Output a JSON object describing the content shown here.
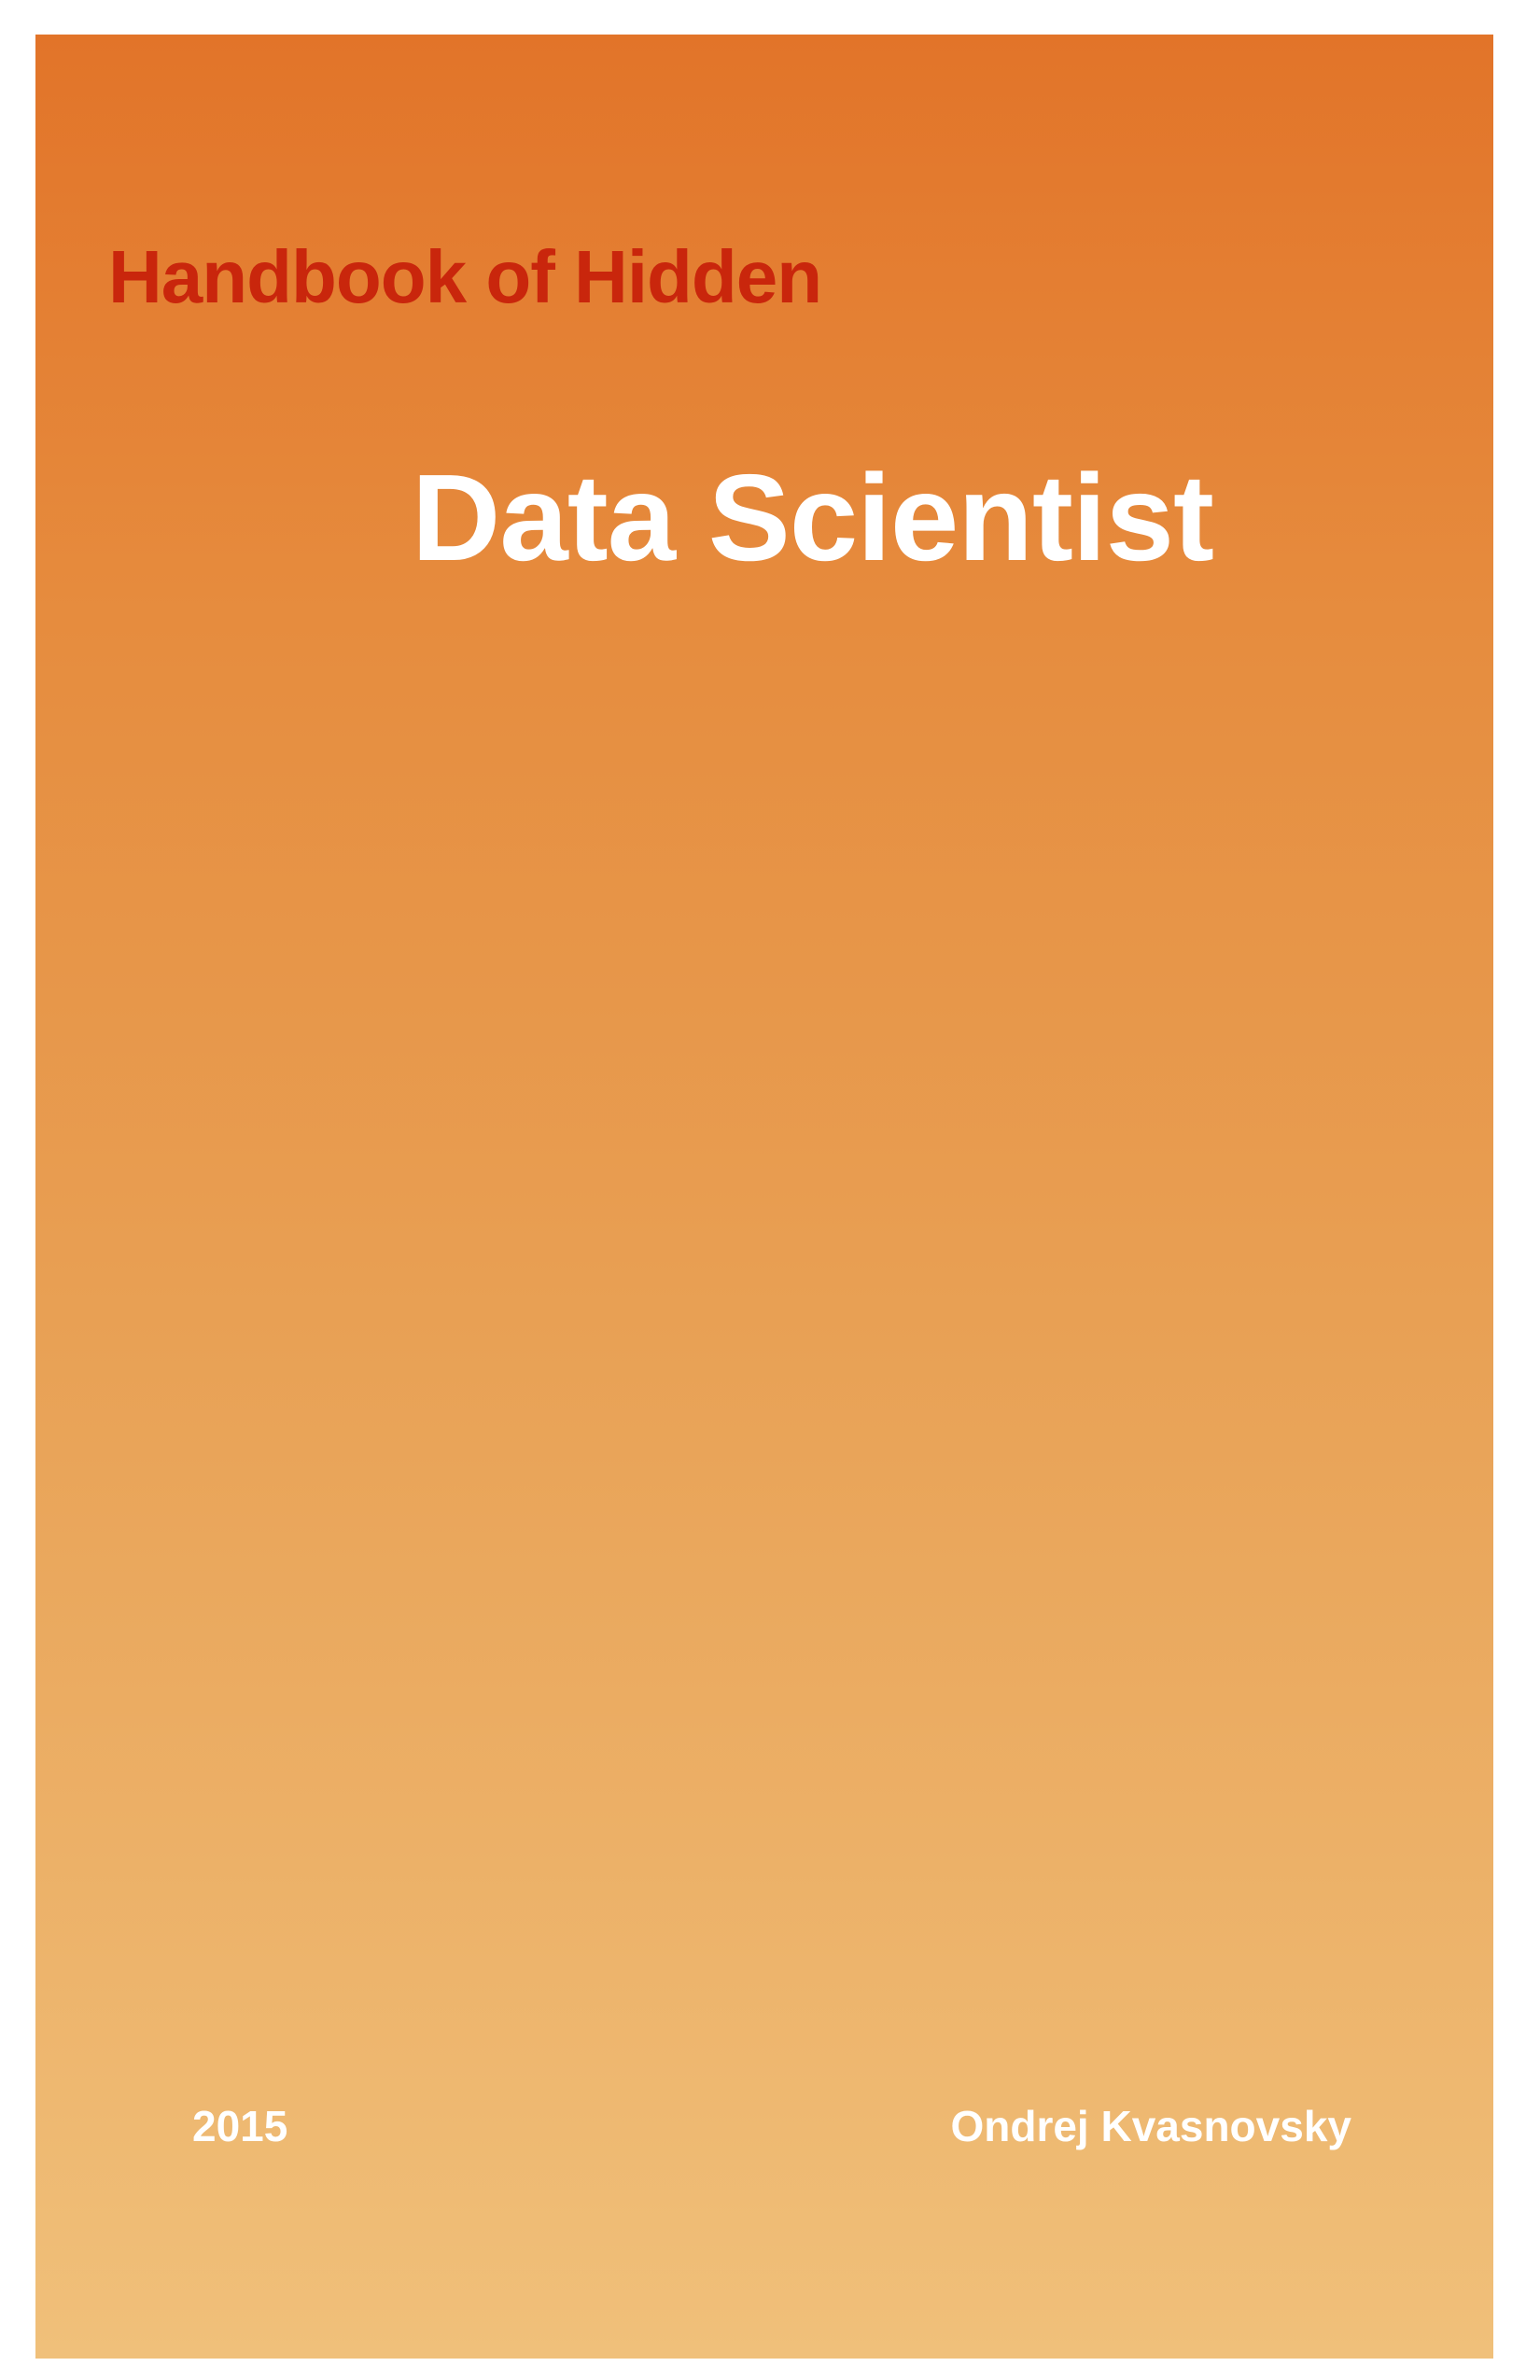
{
  "cover": {
    "title_top": "Handbook of Hidden",
    "title_main": "Data Scientist",
    "year": "2015",
    "author": "Ondrej Kvasnovsky",
    "colors": {
      "gradient_top": "#e27429",
      "gradient_bottom": "#f0c07a",
      "title_top": "#c9260c",
      "title_main": "#ffffff",
      "footer_text": "#ffffff"
    }
  }
}
